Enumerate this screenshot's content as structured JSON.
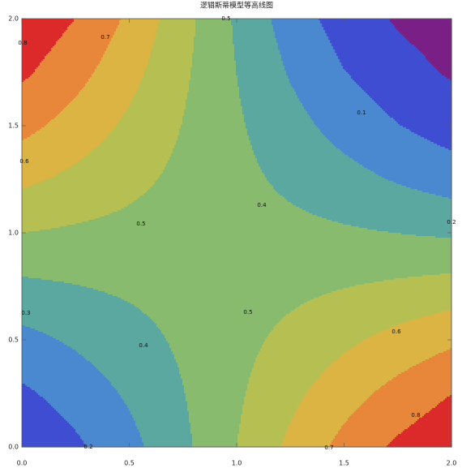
{
  "chart_data": {
    "type": "contour",
    "title": "逻辑斯蒂模型等高线图",
    "x": [
      0,
      0.25,
      0.5,
      0.75,
      1,
      1.25,
      1.5,
      1.75,
      2
    ],
    "y": [
      0,
      0.25,
      0.5,
      0.75,
      1,
      1.25,
      1.5,
      1.75,
      2
    ],
    "z": [
      [
        0.119,
        0.182,
        0.269,
        0.378,
        0.5,
        0.622,
        0.731,
        0.818,
        0.881
      ],
      [
        0.182,
        0.242,
        0.314,
        0.397,
        0.485,
        0.575,
        0.66,
        0.735,
        0.799
      ],
      [
        0.269,
        0.315,
        0.364,
        0.416,
        0.471,
        0.526,
        0.58,
        0.633,
        0.682
      ],
      [
        0.378,
        0.397,
        0.416,
        0.436,
        0.456,
        0.476,
        0.497,
        0.517,
        0.537
      ],
      [
        0.5,
        0.485,
        0.471,
        0.456,
        0.442,
        0.427,
        0.413,
        0.399,
        0.385
      ],
      [
        0.622,
        0.575,
        0.526,
        0.476,
        0.427,
        0.379,
        0.334,
        0.291,
        0.252
      ],
      [
        0.731,
        0.66,
        0.58,
        0.497,
        0.413,
        0.334,
        0.263,
        0.203,
        0.154
      ],
      [
        0.818,
        0.735,
        0.633,
        0.517,
        0.399,
        0.291,
        0.203,
        0.136,
        0.089
      ],
      [
        0.881,
        0.799,
        0.682,
        0.537,
        0.385,
        0.252,
        0.154,
        0.089,
        0.05
      ]
    ],
    "levels": [
      0.1,
      0.2,
      0.3,
      0.4,
      0.5,
      0.6,
      0.7,
      0.8
    ],
    "colors": [
      "#7a1f86",
      "#3f4dd2",
      "#4a88d0",
      "#5ba8a0",
      "#88bb6e",
      "#b6c052",
      "#dcb444",
      "#e8873a",
      "#dc2a2a"
    ],
    "contour_labels": [
      0.8,
      0.7,
      0.6,
      0.5,
      0.4,
      0.5,
      0.1,
      0.2,
      0.3,
      0.4,
      0.5,
      0.6,
      0.8,
      0.7,
      0.2
    ],
    "xlim": [
      0,
      2
    ],
    "ylim": [
      0,
      2
    ],
    "xticks": [
      {
        "value": 0,
        "label": "0.0"
      },
      0.5,
      {
        "value": 1,
        "label": "1.0"
      },
      1.5,
      {
        "value": 2,
        "label": "2.0"
      }
    ],
    "yticks": [
      {
        "value": 0,
        "label": "0.0"
      },
      0.5,
      {
        "value": 1,
        "label": "1.0"
      },
      1.5,
      {
        "value": 2,
        "label": "2.0"
      }
    ]
  }
}
